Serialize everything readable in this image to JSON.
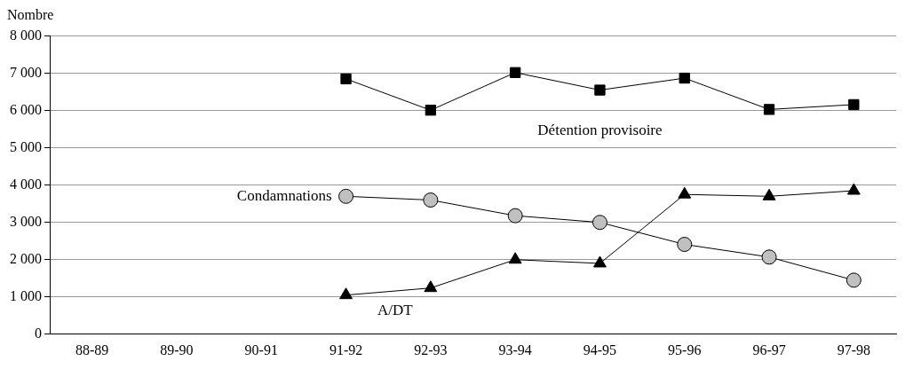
{
  "chart_data": {
    "type": "line",
    "ylabel": "Nombre",
    "categories": [
      "88-89",
      "89-90",
      "90-91",
      "91-92",
      "92-93",
      "93-94",
      "94-95",
      "95-96",
      "96-97",
      "97-98"
    ],
    "series": [
      {
        "name": "Détention provisoire",
        "color": "#000000",
        "marker": "square",
        "values": [
          null,
          null,
          null,
          6850,
          6010,
          7020,
          6550,
          6870,
          6030,
          6160
        ]
      },
      {
        "name": "Condamnations",
        "color": "#c0c0c0",
        "marker": "circle",
        "values": [
          null,
          null,
          null,
          3700,
          3600,
          3180,
          3000,
          2410,
          2070,
          1450
        ]
      },
      {
        "name": "A/DT",
        "color": "#000000",
        "marker": "triangle",
        "values": [
          null,
          null,
          null,
          1050,
          1240,
          2000,
          1900,
          3750,
          3700,
          3850
        ]
      }
    ],
    "ylim": [
      0,
      8000
    ],
    "yticks": [
      {
        "value": 0,
        "label": "0"
      },
      {
        "value": 1000,
        "label": "1 000"
      },
      {
        "value": 2000,
        "label": "2 000"
      },
      {
        "value": 3000,
        "label": "3 000"
      },
      {
        "value": 4000,
        "label": "4 000"
      },
      {
        "value": 5000,
        "label": "5 000"
      },
      {
        "value": 6000,
        "label": "6 000"
      },
      {
        "value": 7000,
        "label": "7 000"
      },
      {
        "value": 8000,
        "label": "8 000"
      }
    ],
    "grid": "y",
    "legend": false
  }
}
